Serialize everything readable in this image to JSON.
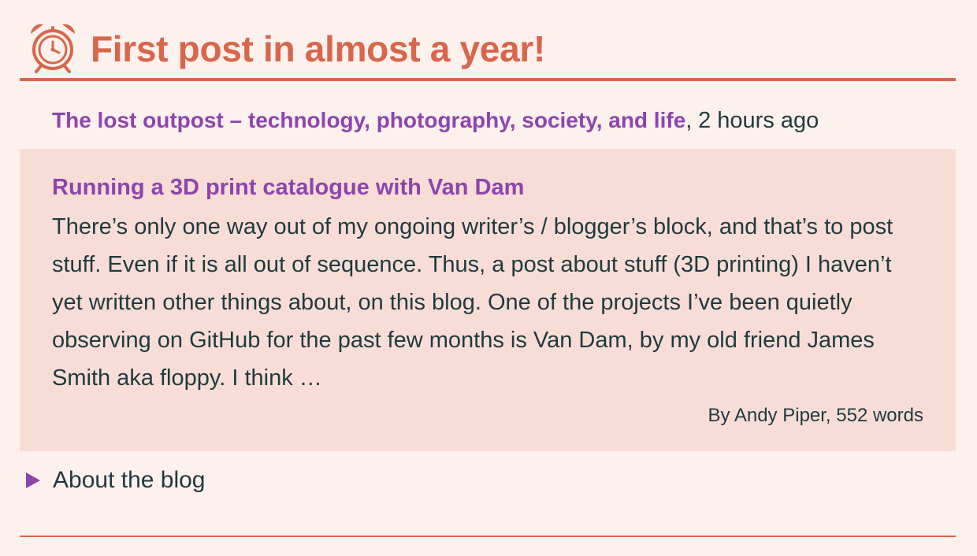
{
  "header": {
    "icon": "alarm-clock-icon",
    "title": "First post in almost a year!"
  },
  "source": {
    "blog_name": "The lost outpost – technology, photography, society, and life",
    "separator": ",",
    "time_ago": "2 hours ago"
  },
  "entry": {
    "title": "Running a 3D print catalogue with Van Dam",
    "excerpt": "There’s only one way out of my ongoing writer’s / blogger’s block, and that’s to post stuff. Even if it is all out of sequence. Thus, a post about stuff (3D printing) I haven’t yet written other things about, on this blog. One of the projects I’ve been quietly observing on GitHub for the past few months is Van Dam, by my old friend James Smith aka floppy. I think …",
    "meta": "By Andy Piper, 552 words"
  },
  "about": {
    "icon": "disclosure-triangle-icon",
    "label": "About the blog"
  },
  "colors": {
    "accent": "#d9664a",
    "link": "#8e44ad",
    "background": "#fdf1ee",
    "card": "#f8ddd6",
    "text": "#1f3a3d"
  }
}
